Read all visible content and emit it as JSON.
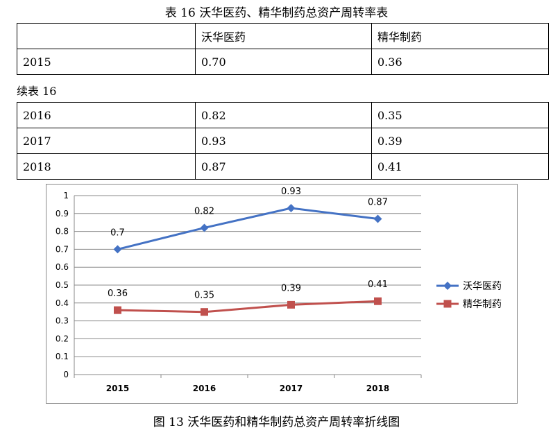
{
  "table_title": "表 16 沃华医药、精华制药总资产周转率表",
  "continued_label": "续表 16",
  "table1": {
    "header": [
      "",
      "沃华医药",
      "精华制药"
    ],
    "rows": [
      [
        "2015",
        "0.70",
        "0.36"
      ]
    ]
  },
  "table2": {
    "rows": [
      [
        "2016",
        "0.82",
        "0.35"
      ],
      [
        "2017",
        "0.93",
        "0.39"
      ],
      [
        "2018",
        "0.87",
        "0.41"
      ]
    ]
  },
  "caption": "图 13 沃华医药和精华制药总资产周转率折线图",
  "chart_data": {
    "type": "line",
    "categories": [
      "2015",
      "2016",
      "2017",
      "2018"
    ],
    "series": [
      {
        "name": "沃华医药",
        "values": [
          0.7,
          0.82,
          0.93,
          0.87
        ],
        "labels": [
          "0.7",
          "0.82",
          "0.93",
          "0.87"
        ],
        "color": "#4472C4",
        "marker": "diamond"
      },
      {
        "name": "精华制药",
        "values": [
          0.36,
          0.35,
          0.39,
          0.41
        ],
        "labels": [
          "0.36",
          "0.35",
          "0.39",
          "0.41"
        ],
        "color": "#C0504D",
        "marker": "square"
      }
    ],
    "ylim": [
      0,
      1
    ],
    "yticks": [
      "0",
      "0.1",
      "0.2",
      "0.3",
      "0.4",
      "0.5",
      "0.6",
      "0.7",
      "0.8",
      "0.9",
      "1"
    ],
    "grid": true,
    "legend_position": "right"
  }
}
